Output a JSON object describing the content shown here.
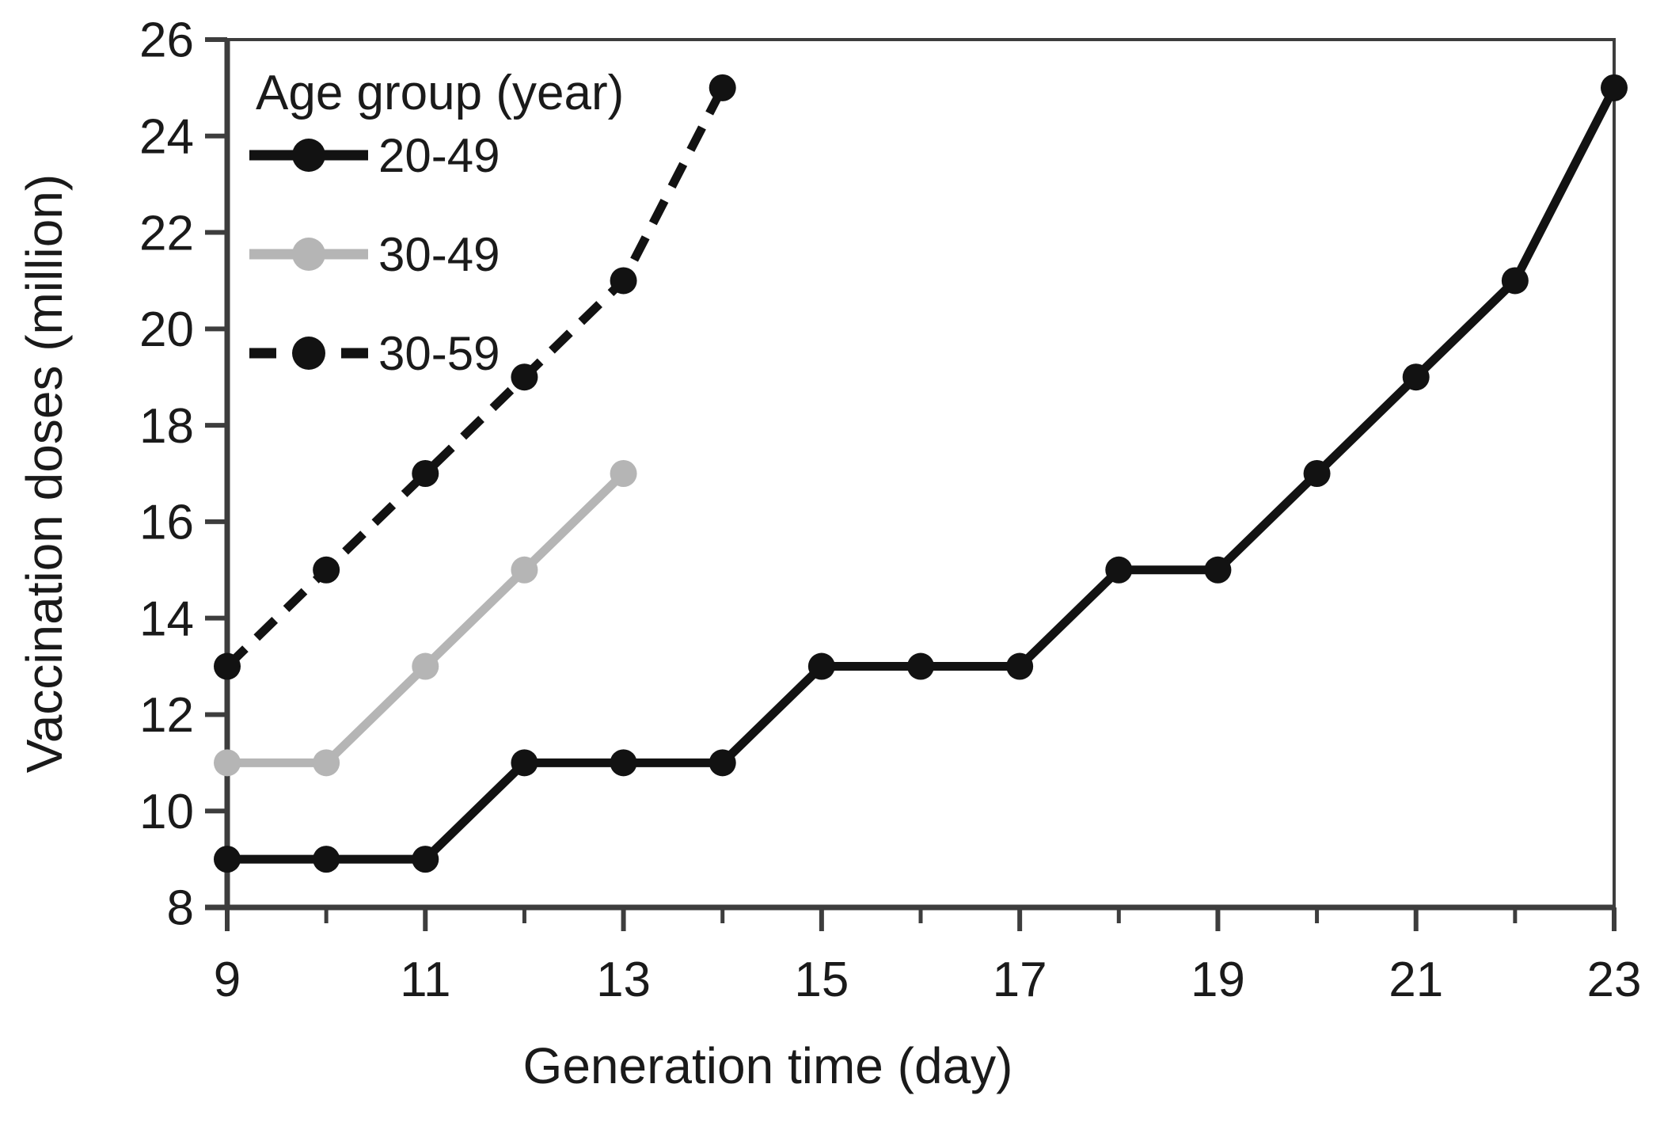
{
  "chart_data": {
    "type": "line",
    "title": "",
    "xlabel": "Generation time (day)",
    "ylabel": "Vaccination doses (million)",
    "xlim": [
      9,
      23
    ],
    "ylim": [
      8,
      26
    ],
    "x_major_ticks": [
      9,
      11,
      13,
      15,
      17,
      19,
      21,
      23
    ],
    "x_minor_ticks": [
      10,
      12,
      14,
      16,
      18,
      20,
      22
    ],
    "y_ticks": [
      8,
      10,
      12,
      14,
      16,
      18,
      20,
      22,
      24,
      26
    ],
    "grid": false,
    "legend_position": "top-left",
    "legend_title": "Age group (year)",
    "colors": {
      "black_series": "#121212",
      "gray_series": "#b5b5b5",
      "axis": "#3d3d3d",
      "background": "#ffffff"
    },
    "series": [
      {
        "name": "20-49",
        "style": "solid",
        "color": "#121212",
        "x": [
          9,
          10,
          11,
          12,
          13,
          14,
          15,
          16,
          17,
          18,
          19,
          20,
          21,
          22,
          23
        ],
        "y": [
          9,
          9,
          9,
          11,
          11,
          11,
          13,
          13,
          13,
          15,
          15,
          17,
          19,
          21,
          25
        ]
      },
      {
        "name": "30-49",
        "style": "solid",
        "color": "#b5b5b5",
        "x": [
          9,
          10,
          11,
          12,
          13
        ],
        "y": [
          11,
          11,
          13,
          15,
          17
        ]
      },
      {
        "name": "30-59",
        "style": "dashed",
        "color": "#121212",
        "x": [
          9,
          10,
          11,
          12,
          13,
          14
        ],
        "y": [
          13,
          15,
          17,
          19,
          21,
          25
        ]
      }
    ]
  }
}
